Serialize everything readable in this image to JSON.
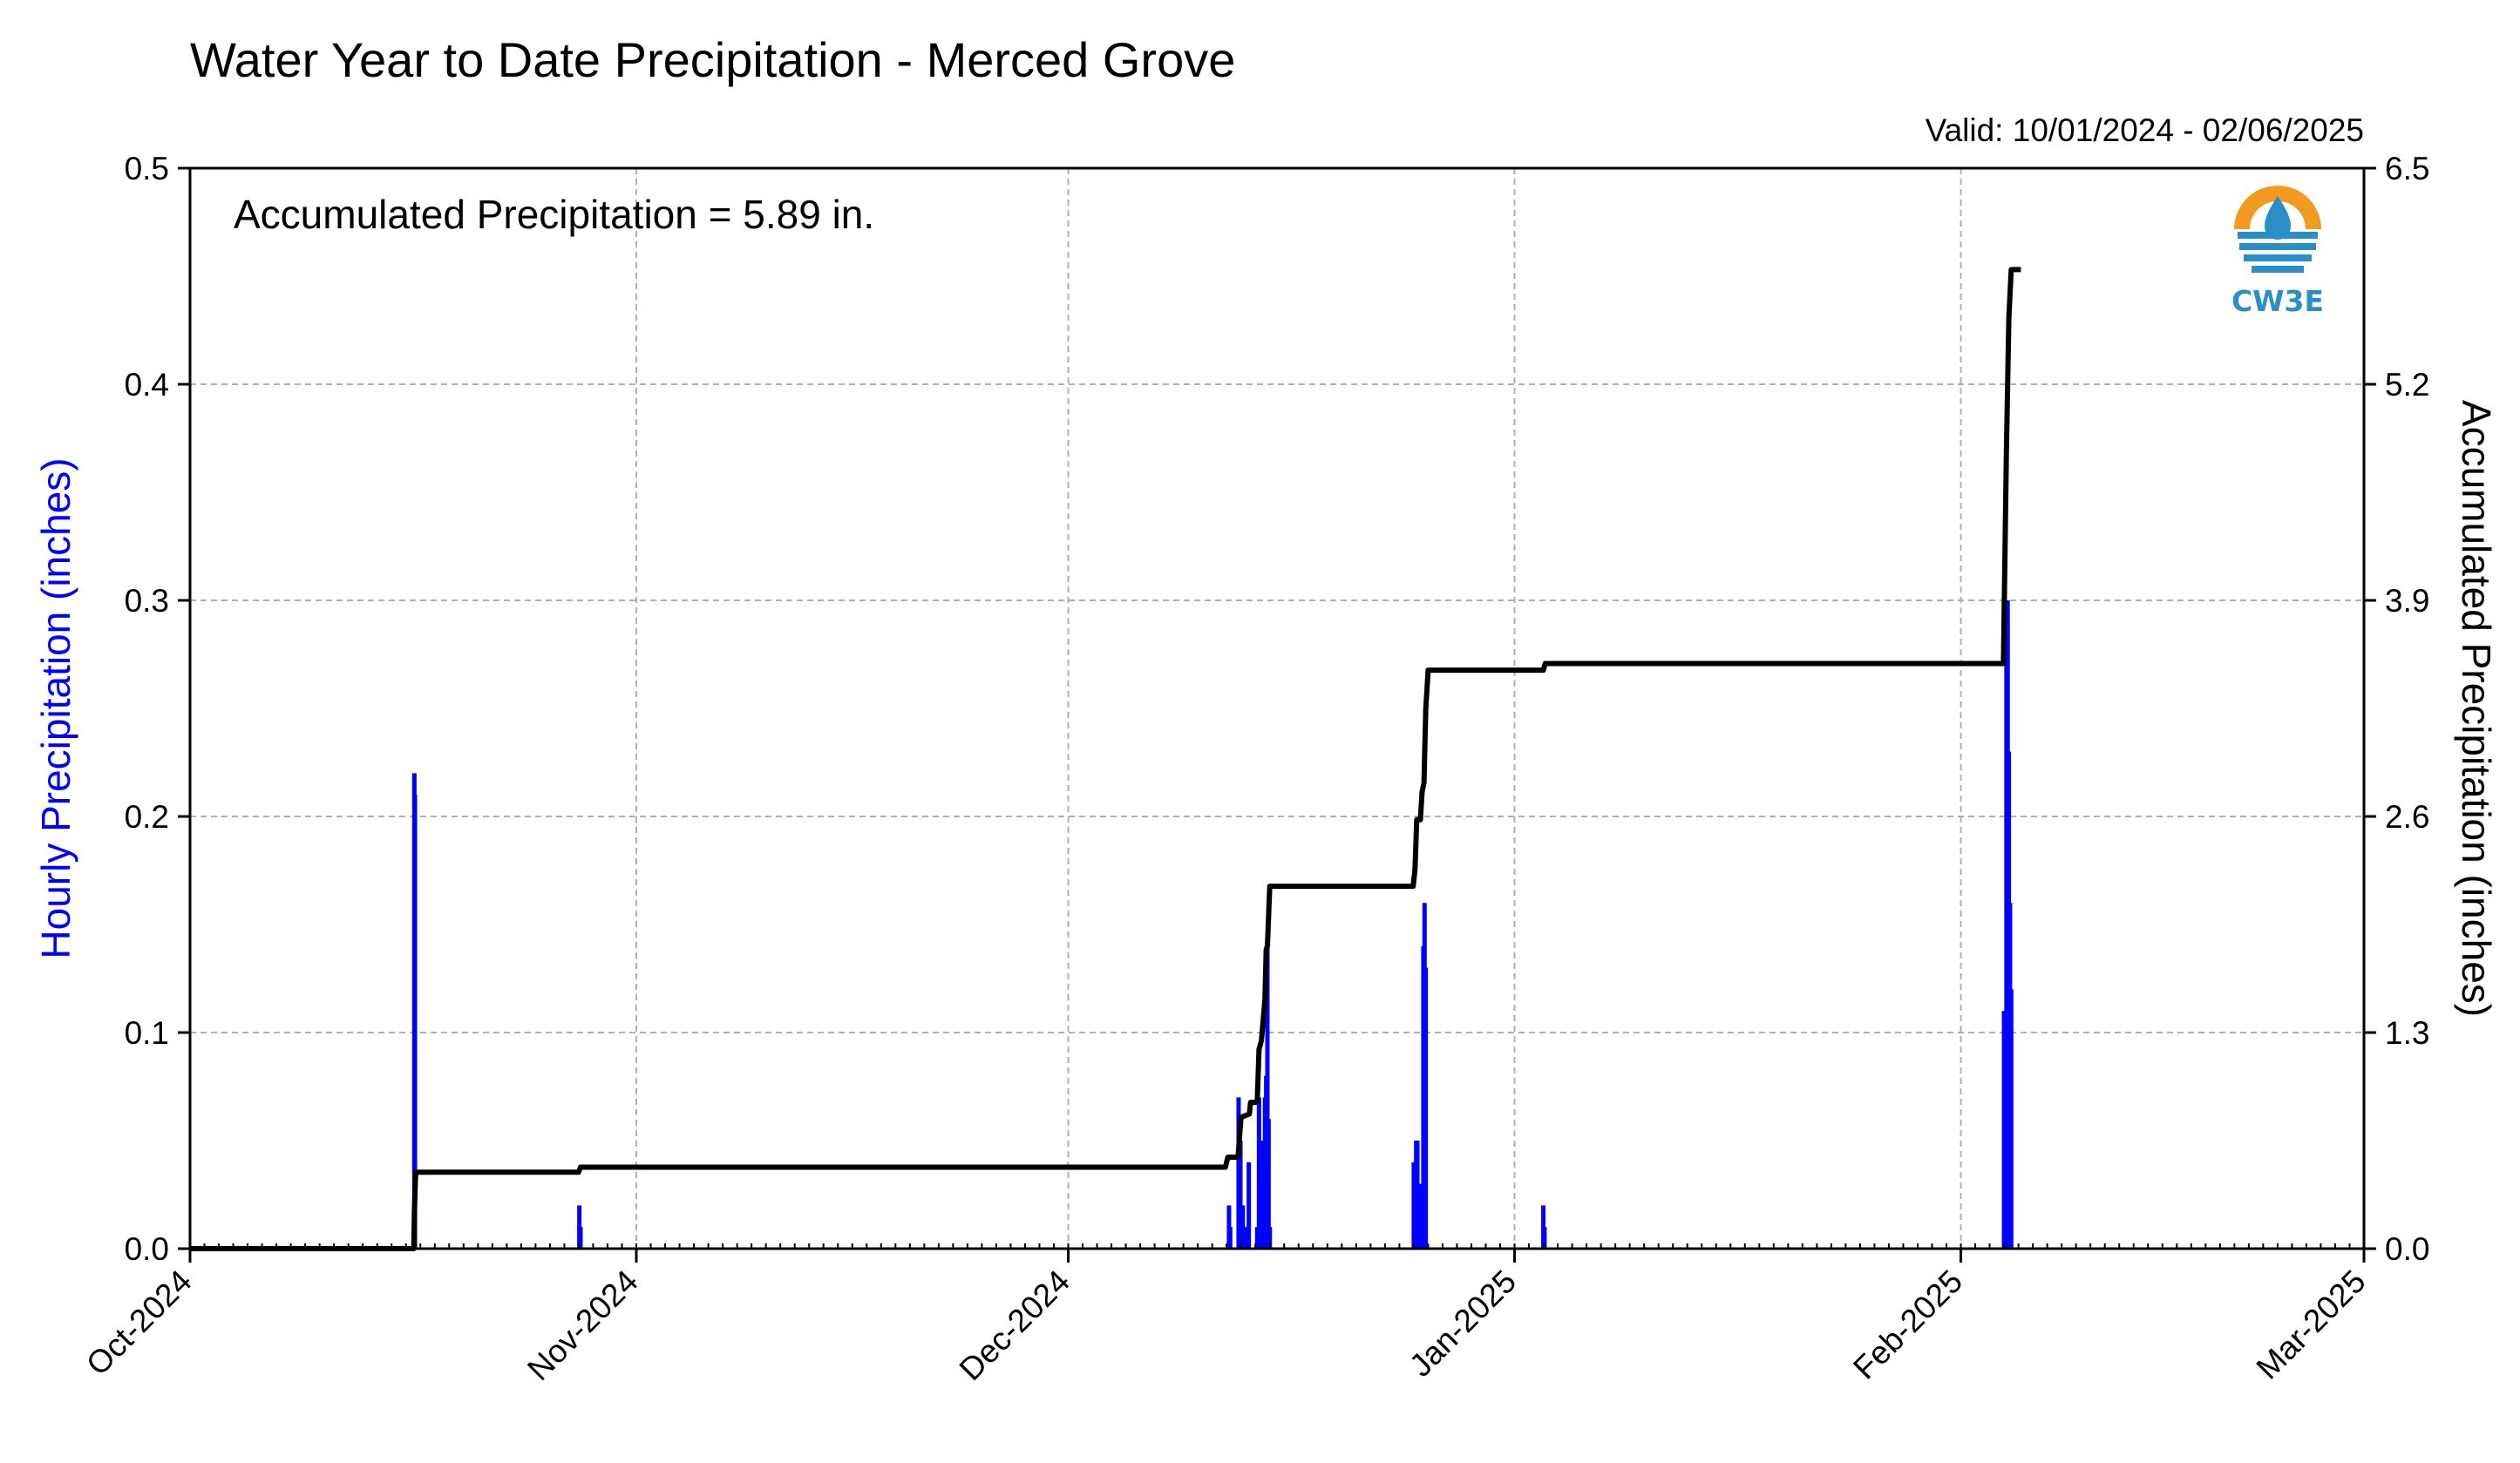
{
  "colors": {
    "hourly_bar": "#0000ff",
    "accumulated_line": "#000000",
    "grid": "#b0b0b0",
    "logo_orange": "#f39a21",
    "logo_blue": "#2b8fc7"
  },
  "logo": {
    "text": "CW3E"
  },
  "chart_data": {
    "type": "bar+line",
    "title": "Water Year to Date Precipitation - Merced Grove",
    "valid_text": "Valid: 10/01/2024 - 02/06/2025",
    "annotation": "Accumulated Precipitation = 5.89 in.",
    "xlabel": "",
    "ylabel_left": "Hourly Precipitation (inches)",
    "ylabel_right": "Accumulated Precipitation (inches)",
    "xlim": [
      "2024-10-01",
      "2025-03-01"
    ],
    "ylim_left": [
      0,
      0.5
    ],
    "ylim_right": [
      0,
      6.5
    ],
    "grid": true,
    "x_ticks": [
      {
        "date": "2024-10-01",
        "label": "Oct-2024"
      },
      {
        "date": "2024-11-01",
        "label": "Nov-2024"
      },
      {
        "date": "2024-12-01",
        "label": "Dec-2024"
      },
      {
        "date": "2025-01-01",
        "label": "Jan-2025"
      },
      {
        "date": "2025-02-01",
        "label": "Feb-2025"
      },
      {
        "date": "2025-03-01",
        "label": "Mar-2025"
      }
    ],
    "y_ticks_left": [
      "0.0",
      "0.1",
      "0.2",
      "0.3",
      "0.4",
      "0.5"
    ],
    "y_ticks_right": [
      "0.0",
      "1.3",
      "2.6",
      "3.9",
      "5.2",
      "6.5"
    ],
    "series": [
      {
        "name": "Hourly Precipitation",
        "kind": "bar",
        "points": [
          [
            "2024-10-16 14:00",
            0.22
          ],
          [
            "2024-10-16 15:00",
            0.21
          ],
          [
            "2024-10-28 01:00",
            0.02
          ],
          [
            "2024-10-28 03:00",
            0.01
          ],
          [
            "2024-12-12 04:00",
            0.02
          ],
          [
            "2024-12-12 06:00",
            0.01
          ],
          [
            "2024-12-12 20:00",
            0.07
          ],
          [
            "2024-12-12 23:00",
            0.05
          ],
          [
            "2024-12-13 03:00",
            0.02
          ],
          [
            "2024-12-13 07:00",
            0.01
          ],
          [
            "2024-12-13 13:00",
            0.04
          ],
          [
            "2024-12-14 03:00",
            0.01
          ],
          [
            "2024-12-14 06:00",
            0.07
          ],
          [
            "2024-12-14 10:00",
            0.03
          ],
          [
            "2024-12-14 13:00",
            0.05
          ],
          [
            "2024-12-14 16:00",
            0.07
          ],
          [
            "2024-12-14 18:00",
            0.08
          ],
          [
            "2024-12-14 20:00",
            0.14
          ],
          [
            "2024-12-14 22:00",
            0.06
          ],
          [
            "2024-12-15 00:00",
            0.01
          ],
          [
            "2024-12-25 00:00",
            0.04
          ],
          [
            "2024-12-25 04:00",
            0.05
          ],
          [
            "2024-12-25 06:00",
            0.05
          ],
          [
            "2024-12-25 10:00",
            0.03
          ],
          [
            "2024-12-25 14:00",
            0.02
          ],
          [
            "2024-12-25 16:00",
            0.14
          ],
          [
            "2024-12-25 18:00",
            0.16
          ],
          [
            "2024-12-25 20:00",
            0.13
          ],
          [
            "2025-01-03 00:00",
            0.02
          ],
          [
            "2025-01-03 02:00",
            0.01
          ],
          [
            "2025-02-04 00:00",
            0.11
          ],
          [
            "2025-02-04 04:00",
            0.27
          ],
          [
            "2025-02-04 06:00",
            0.3
          ],
          [
            "2025-02-04 08:00",
            0.23
          ],
          [
            "2025-02-04 10:00",
            0.16
          ],
          [
            "2025-02-04 12:00",
            0.12
          ]
        ]
      },
      {
        "name": "Accumulated Precipitation",
        "kind": "line",
        "points": [
          [
            "2024-10-01 00:00",
            0.0
          ],
          [
            "2024-10-16 13:00",
            0.0
          ],
          [
            "2024-10-16 14:00",
            0.22
          ],
          [
            "2024-10-16 16:00",
            0.46
          ],
          [
            "2024-10-28 00:00",
            0.46
          ],
          [
            "2024-10-28 03:00",
            0.49
          ],
          [
            "2024-12-11 22:00",
            0.49
          ],
          [
            "2024-12-12 02:00",
            0.55
          ],
          [
            "2024-12-12 19:00",
            0.55
          ],
          [
            "2024-12-13 00:00",
            0.79
          ],
          [
            "2024-12-13 14:00",
            0.81
          ],
          [
            "2024-12-13 16:00",
            0.88
          ],
          [
            "2024-12-14 03:00",
            0.88
          ],
          [
            "2024-12-14 06:00",
            1.2
          ],
          [
            "2024-12-14 10:00",
            1.25
          ],
          [
            "2024-12-14 16:00",
            1.5
          ],
          [
            "2024-12-14 18:00",
            1.8
          ],
          [
            "2024-12-14 20:00",
            1.82
          ],
          [
            "2024-12-15 00:00",
            2.18
          ],
          [
            "2024-12-24 23:00",
            2.18
          ],
          [
            "2024-12-25 02:00",
            2.28
          ],
          [
            "2024-12-25 05:00",
            2.58
          ],
          [
            "2024-12-25 11:00",
            2.58
          ],
          [
            "2024-12-25 14:00",
            2.75
          ],
          [
            "2024-12-25 17:00",
            2.8
          ],
          [
            "2024-12-25 20:00",
            3.25
          ],
          [
            "2024-12-26 00:00",
            3.48
          ],
          [
            "2025-01-03 00:00",
            3.48
          ],
          [
            "2025-01-03 03:00",
            3.52
          ],
          [
            "2025-02-03 23:00",
            3.52
          ],
          [
            "2025-02-04 04:00",
            4.8
          ],
          [
            "2025-02-04 08:00",
            5.6
          ],
          [
            "2025-02-04 12:00",
            5.89
          ],
          [
            "2025-02-05 04:00",
            5.89
          ]
        ]
      }
    ]
  }
}
